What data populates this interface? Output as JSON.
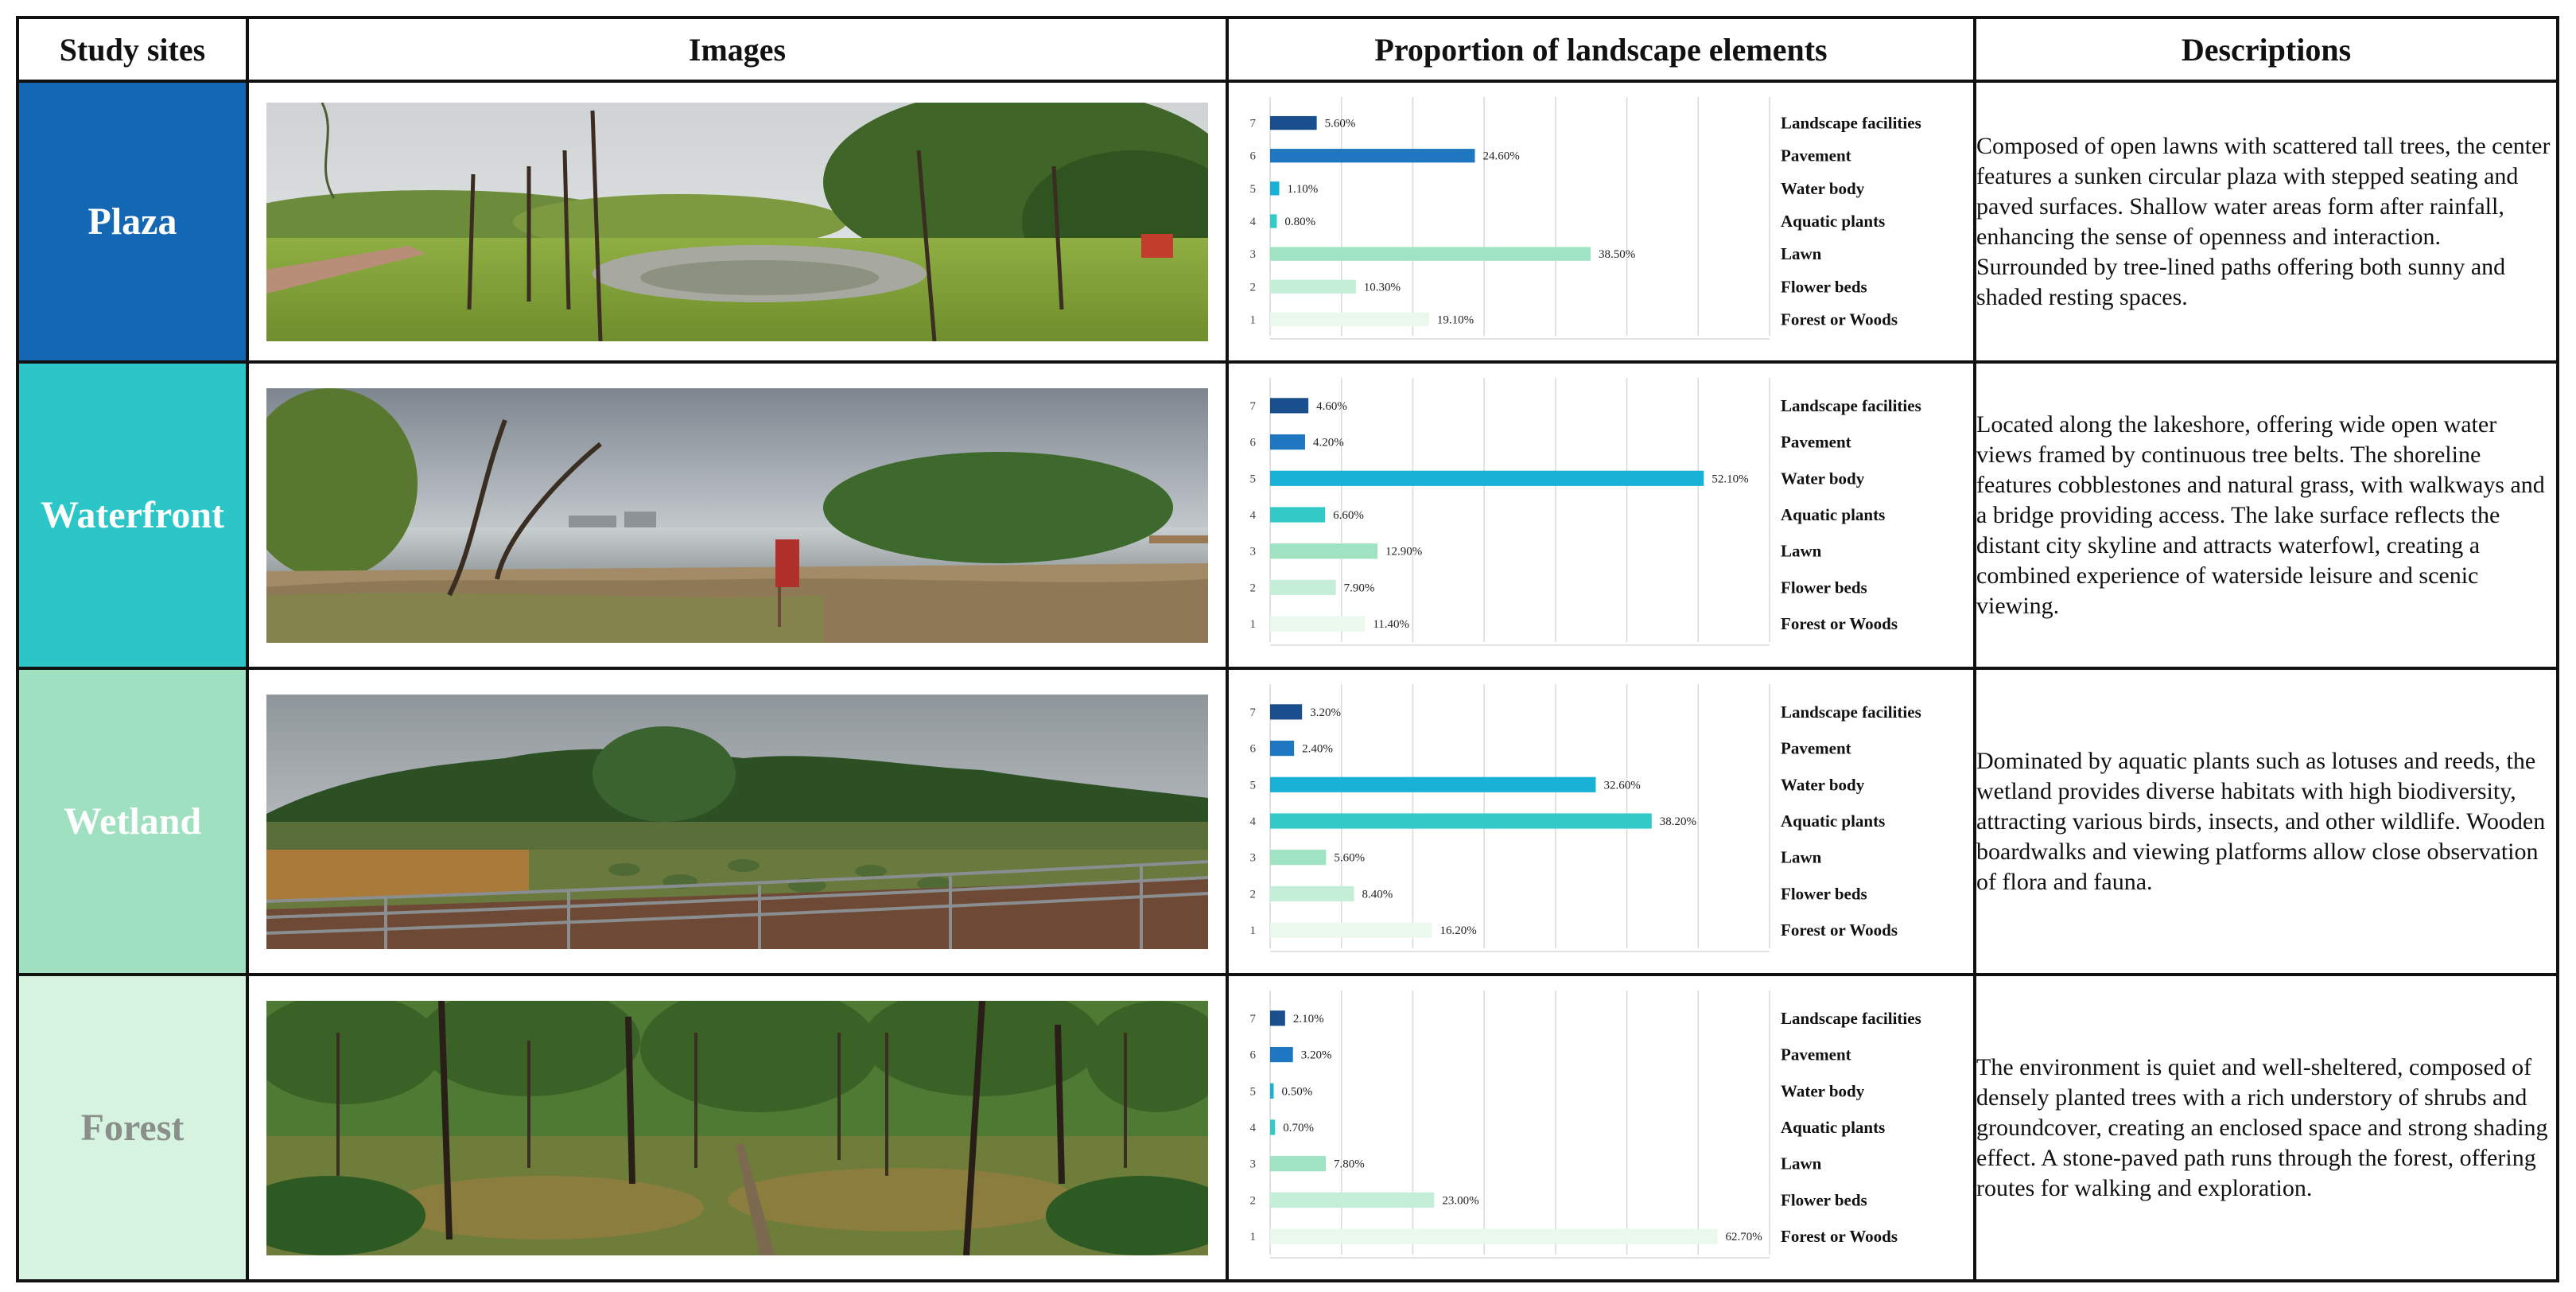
{
  "headers": {
    "study_sites": "Study sites",
    "images": "Images",
    "proportion": "Proportion of landscape elements",
    "descriptions": "Descriptions"
  },
  "rows": [
    {
      "site": "Plaza",
      "site_bg": "#1468b3",
      "site_text_color": "#ffffff",
      "description": "Composed of open lawns with scattered tall trees, the center features a sunken circular plaza with stepped seating and paved surfaces. Shallow water areas form after rainfall, enhancing the sense of openness and interaction. Surrounded by tree-lined paths offering both sunny and shaded resting spaces."
    },
    {
      "site": "Waterfront",
      "site_bg": "#2cc6c9",
      "site_text_color": "#ffffff",
      "description": "Located along the lakeshore, offering wide open water views framed by continuous tree belts. The shoreline features cobblestones and natural grass, with walkways and a bridge providing access. The lake surface reflects the distant city skyline and attracts waterfowl, creating a combined experience of waterside leisure and scenic viewing."
    },
    {
      "site": "Wetland",
      "site_bg": "#9fe0c0",
      "site_text_color": "#ffffff",
      "description": "Dominated by aquatic plants such as lotuses and reeds, the wetland provides diverse habitats with high biodiversity, attracting various birds, insects, and other wildlife. Wooden boardwalks and viewing platforms allow close observation of flora and fauna."
    },
    {
      "site": "Forest",
      "site_bg": "#d5f3de",
      "site_text_color": "#8a8f8c",
      "description": "The environment is quiet and well-sheltered, composed of densely planted trees with a rich understory of shrubs and groundcover, creating an enclosed space and strong shading effect. A stone-paved path runs through the forest, offering routes for walking and exploration."
    }
  ],
  "chart_data": [
    {
      "type": "bar",
      "orientation": "horizontal",
      "categories": [
        "Landscape facilities",
        "Pavement",
        "Water body",
        "Aquatic plants",
        "Lawn",
        "Flower beds",
        "Forest or Woods"
      ],
      "index_labels": [
        "7",
        "6",
        "5",
        "4",
        "3",
        "2",
        "1"
      ],
      "values": [
        5.6,
        24.6,
        1.1,
        0.8,
        38.5,
        10.3,
        19.1
      ],
      "value_labels": [
        "5.60%",
        "24.60%",
        "1.10%",
        "0.80%",
        "38.50%",
        "10.30%",
        "19.10%"
      ],
      "xlim": [
        0,
        60
      ],
      "grid": true
    },
    {
      "type": "bar",
      "orientation": "horizontal",
      "categories": [
        "Landscape facilities",
        "Pavement",
        "Water body",
        "Aquatic plants",
        "Lawn",
        "Flower beds",
        "Forest or Woods"
      ],
      "index_labels": [
        "7",
        "6",
        "5",
        "4",
        "3",
        "2",
        "1"
      ],
      "values": [
        4.6,
        4.2,
        52.1,
        6.6,
        12.9,
        7.9,
        11.4
      ],
      "value_labels": [
        "4.60%",
        "4.20%",
        "52.10%",
        "6.60%",
        "12.90%",
        "7.90%",
        "11.40%"
      ],
      "xlim": [
        0,
        60
      ],
      "grid": true
    },
    {
      "type": "bar",
      "orientation": "horizontal",
      "categories": [
        "Landscape facilities",
        "Pavement",
        "Water body",
        "Aquatic plants",
        "Lawn",
        "Flower beds",
        "Forest or Woods"
      ],
      "index_labels": [
        "7",
        "6",
        "5",
        "4",
        "3",
        "2",
        "1"
      ],
      "values": [
        3.2,
        2.4,
        32.6,
        38.2,
        5.6,
        8.4,
        16.2
      ],
      "value_labels": [
        "3.20%",
        "2.40%",
        "32.60%",
        "38.20%",
        "5.60%",
        "8.40%",
        "16.20%"
      ],
      "xlim": [
        0,
        50
      ],
      "grid": true
    },
    {
      "type": "bar",
      "orientation": "horizontal",
      "categories": [
        "Landscape facilities",
        "Pavement",
        "Water body",
        "Aquatic plants",
        "Lawn",
        "Flower beds",
        "Forest or Woods"
      ],
      "index_labels": [
        "7",
        "6",
        "5",
        "4",
        "3",
        "2",
        "1"
      ],
      "values": [
        2.1,
        3.2,
        0.5,
        0.7,
        7.8,
        23.0,
        62.7
      ],
      "value_labels": [
        "2.10%",
        "3.20%",
        "0.50%",
        "0.70%",
        "7.80%",
        "23.00%",
        "62.70%"
      ],
      "xlim": [
        0,
        70
      ],
      "grid": true
    }
  ],
  "bar_colors": [
    "#1a4f8e",
    "#1f77c2",
    "#19b1d6",
    "#33c9c7",
    "#9fe3c2",
    "#c5eed9",
    "#eaf8ee"
  ]
}
